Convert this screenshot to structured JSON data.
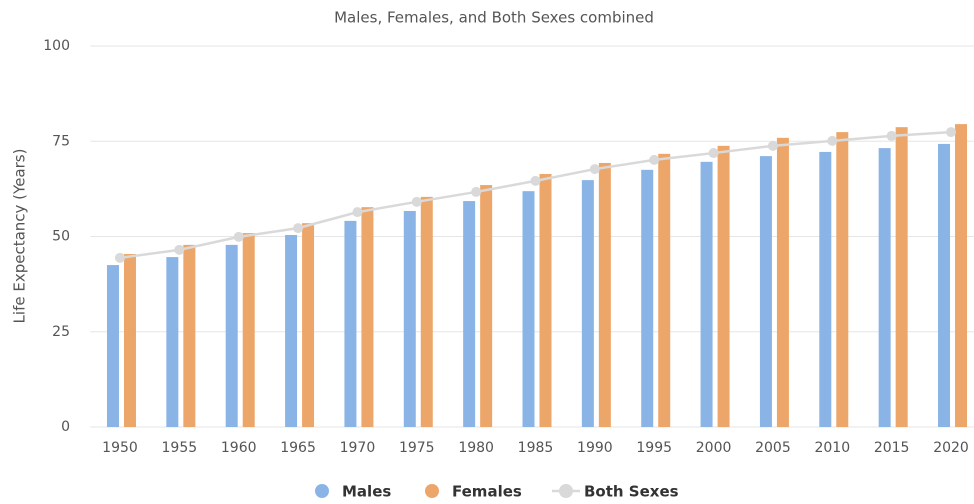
{
  "chart_data": {
    "type": "bar",
    "title": "Males, Females, and Both Sexes combined",
    "y_label": "Life Expectancy (Years)",
    "categories": [
      "1950",
      "1955",
      "1960",
      "1965",
      "1970",
      "1975",
      "1980",
      "1985",
      "1990",
      "1995",
      "2000",
      "2005",
      "2010",
      "2015",
      "2020"
    ],
    "series": [
      {
        "name": "Males",
        "type": "bar",
        "color": "#8ab4e6",
        "values": [
          42.5,
          44.6,
          47.8,
          50.4,
          54.1,
          56.7,
          59.3,
          61.9,
          64.8,
          67.5,
          69.6,
          71.1,
          72.2,
          73.2,
          74.3
        ]
      },
      {
        "name": "Females",
        "type": "bar",
        "color": "#eda66a",
        "values": [
          45.4,
          47.8,
          50.9,
          53.5,
          57.7,
          60.4,
          63.5,
          66.4,
          69.3,
          71.7,
          73.8,
          75.9,
          77.4,
          78.7,
          79.5
        ]
      },
      {
        "name": "Both Sexes",
        "type": "line",
        "color": "#d9d9d9",
        "values": [
          44.4,
          46.5,
          49.9,
          52.2,
          56.4,
          59.1,
          61.7,
          64.6,
          67.7,
          70.1,
          71.9,
          73.8,
          75.1,
          76.4,
          77.4
        ]
      }
    ],
    "ylim": [
      0,
      100
    ],
    "yticks": [
      0,
      25,
      50,
      75,
      100
    ],
    "grid": true
  }
}
